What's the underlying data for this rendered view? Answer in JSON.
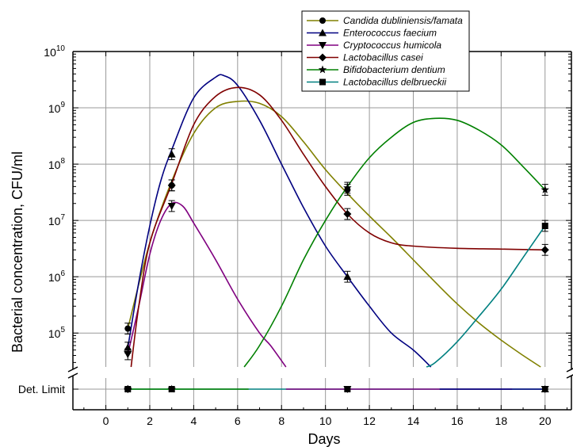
{
  "chart_data": {
    "type": "scatter",
    "xlabel": "Days",
    "ylabel": "Bacterial concentration, CFU/ml",
    "xlim": [
      -1.5,
      21.2
    ],
    "x_ticks": [
      0,
      2,
      4,
      6,
      8,
      10,
      12,
      14,
      16,
      18,
      20
    ],
    "y_scale": "log",
    "ylim": [
      25000,
      10000000000
    ],
    "y_ticks": [
      {
        "value": 100000,
        "base": "10",
        "exp": "5"
      },
      {
        "value": 1000000,
        "base": "10",
        "exp": "6"
      },
      {
        "value": 10000000,
        "base": "10",
        "exp": "7"
      },
      {
        "value": 100000000,
        "base": "10",
        "exp": "8"
      },
      {
        "value": 1000000000,
        "base": "10",
        "exp": "9"
      },
      {
        "value": 10000000000,
        "base": "10",
        "exp": "10"
      }
    ],
    "det_limit_label": "Det. Limit",
    "grid": true,
    "legend_position": "top-right",
    "series": [
      {
        "name": "Candida dubliniensis/famata",
        "color": "#808000",
        "marker": "circle",
        "points": [
          {
            "x": 1,
            "y": 120000
          },
          {
            "x": 3,
            "y": 42000000
          },
          {
            "x": 11,
            "y": 35000000
          },
          {
            "x": 20,
            "y": "Det. Limit"
          }
        ],
        "curve": [
          [
            1,
            120000
          ],
          [
            2,
            4000000
          ],
          [
            3,
            50000000
          ],
          [
            4,
            350000000
          ],
          [
            5,
            1000000000
          ],
          [
            6,
            1300000000
          ],
          [
            7,
            1200000000
          ],
          [
            8,
            700000000
          ],
          [
            9,
            250000000
          ],
          [
            10,
            80000000
          ],
          [
            11,
            30000000
          ],
          [
            12,
            12000000
          ],
          [
            13,
            5000000
          ],
          [
            14,
            2000000
          ],
          [
            15,
            800000
          ],
          [
            16,
            330000
          ],
          [
            17,
            150000
          ],
          [
            18,
            75000
          ],
          [
            19,
            40000
          ],
          [
            19.8,
            25000
          ]
        ]
      },
      {
        "name": "Enterococcus faecium",
        "color": "#000080",
        "marker": "triangle-up",
        "points": [
          {
            "x": 1,
            "y": 55000
          },
          {
            "x": 3,
            "y": 150000000
          },
          {
            "x": 11,
            "y": 1000000
          },
          {
            "x": 20,
            "y": "Det. Limit"
          }
        ],
        "curve": [
          [
            1,
            55000
          ],
          [
            1.5,
            800000
          ],
          [
            2,
            8000000
          ],
          [
            2.5,
            50000000
          ],
          [
            3,
            180000000
          ],
          [
            4,
            1500000000
          ],
          [
            5,
            3500000000
          ],
          [
            5.4,
            3700000000
          ],
          [
            6,
            2500000000
          ],
          [
            7,
            600000000
          ],
          [
            8,
            100000000
          ],
          [
            9,
            17000000
          ],
          [
            10,
            3500000
          ],
          [
            11,
            1000000
          ],
          [
            12,
            300000
          ],
          [
            13,
            100000
          ],
          [
            14,
            50000
          ],
          [
            14.8,
            25000
          ]
        ]
      },
      {
        "name": "Cryptococcus humicola",
        "color": "#800080",
        "marker": "triangle-down",
        "points": [
          {
            "x": 1,
            "y": 42000
          },
          {
            "x": 3,
            "y": 18000000
          },
          {
            "x": 11,
            "y": "Det. Limit"
          },
          {
            "x": 20,
            "y": "Det. Limit"
          }
        ],
        "curve": [
          [
            1,
            42000
          ],
          [
            1.5,
            300000
          ],
          [
            2,
            2500000
          ],
          [
            2.5,
            10000000
          ],
          [
            3,
            20000000
          ],
          [
            3.5,
            18000000
          ],
          [
            4,
            9000000
          ],
          [
            5,
            2000000
          ],
          [
            6,
            400000
          ],
          [
            7,
            100000
          ],
          [
            7.5,
            60000
          ],
          [
            8.2,
            25000
          ]
        ]
      },
      {
        "name": "Lactobacillus casei",
        "color": "#800000",
        "marker": "diamond",
        "points": [
          {
            "x": 1,
            "y": "Det. Limit"
          },
          {
            "x": 3,
            "y": 42000000
          },
          {
            "x": 11,
            "y": 13000000
          },
          {
            "x": 20,
            "y": 3000000
          }
        ],
        "curve": [
          [
            1.15,
            25000
          ],
          [
            1.5,
            300000
          ],
          [
            2,
            4000000
          ],
          [
            3,
            45000000
          ],
          [
            4,
            500000000
          ],
          [
            5,
            1600000000
          ],
          [
            6,
            2300000000
          ],
          [
            7,
            1700000000
          ],
          [
            8,
            600000000
          ],
          [
            9,
            150000000
          ],
          [
            10,
            40000000
          ],
          [
            11,
            13000000
          ],
          [
            12,
            6000000
          ],
          [
            13,
            4000000
          ],
          [
            14,
            3500000
          ],
          [
            16,
            3200000
          ],
          [
            18,
            3100000
          ],
          [
            20,
            3000000
          ]
        ]
      },
      {
        "name": "Bifidobacterium dentium",
        "color": "#008000",
        "marker": "star",
        "points": [
          {
            "x": 1,
            "y": "Det. Limit"
          },
          {
            "x": 3,
            "y": "Det. Limit"
          },
          {
            "x": 11,
            "y": 38000000
          },
          {
            "x": 20,
            "y": 35000000
          }
        ],
        "curve": [
          [
            6.3,
            25000
          ],
          [
            7,
            60000
          ],
          [
            8,
            300000
          ],
          [
            9,
            2000000
          ],
          [
            10,
            10000000
          ],
          [
            11,
            40000000
          ],
          [
            12,
            130000000
          ],
          [
            13,
            300000000
          ],
          [
            14,
            550000000
          ],
          [
            15,
            650000000
          ],
          [
            16,
            600000000
          ],
          [
            17,
            400000000
          ],
          [
            18,
            220000000
          ],
          [
            19,
            90000000
          ],
          [
            20,
            35000000
          ]
        ]
      },
      {
        "name": "Lactobacillus delbrueckii",
        "color": "#008080",
        "marker": "square",
        "points": [
          {
            "x": 1,
            "y": "Det. Limit"
          },
          {
            "x": 3,
            "y": "Det. Limit"
          },
          {
            "x": 11,
            "y": "Det. Limit"
          },
          {
            "x": 20,
            "y": 8000000
          }
        ],
        "curve": [
          [
            14.6,
            25000
          ],
          [
            15,
            30000
          ],
          [
            16,
            70000
          ],
          [
            17,
            200000
          ],
          [
            18,
            600000
          ],
          [
            19,
            2200000
          ],
          [
            20,
            8000000
          ]
        ]
      }
    ],
    "detlimit_curves": [
      {
        "color": "#008080",
        "x": [
          1,
          20
        ]
      },
      {
        "color": "#800080",
        "x": [
          8.2,
          18.5
        ]
      },
      {
        "color": "#000080",
        "x": [
          15.2,
          20
        ]
      },
      {
        "color": "#008000",
        "x": [
          1,
          6.5
        ]
      }
    ]
  }
}
